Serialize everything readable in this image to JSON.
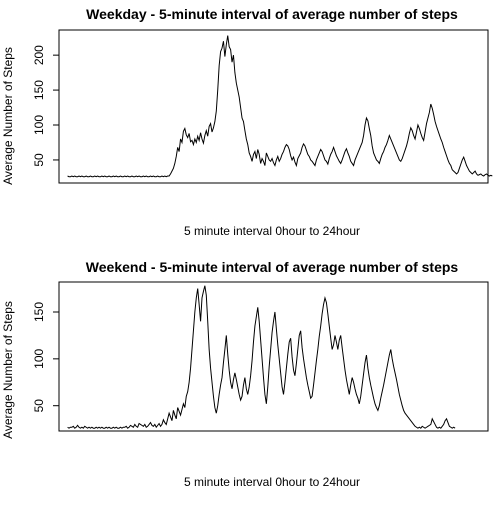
{
  "chart_data": [
    {
      "type": "line",
      "title": "Weekday - 5-minute interval of average number of steps",
      "xlabel": "5 minute interval 0hour to 24hour",
      "ylabel": "Average Number of Steps",
      "yticks": [
        50,
        100,
        150,
        200
      ],
      "ylim": [
        17,
        236
      ],
      "xlim": [
        -6,
        294
      ],
      "grid": false,
      "x_axis_ticks_shown": false,
      "series": [
        {
          "values": [
            27,
            26,
            26,
            27,
            26,
            27,
            26,
            26,
            27,
            26,
            27,
            26,
            26,
            27,
            26,
            26,
            27,
            26,
            26,
            27,
            26,
            27,
            26,
            26,
            27,
            26,
            27,
            26,
            26,
            27,
            26,
            26,
            27,
            26,
            27,
            26,
            26,
            27,
            26,
            26,
            27,
            26,
            27,
            26,
            26,
            27,
            26,
            26,
            27,
            26,
            27,
            26,
            26,
            27,
            26,
            27,
            26,
            26,
            27,
            26,
            27,
            26,
            26,
            27,
            26,
            26,
            27,
            26,
            27,
            26,
            27,
            27,
            30,
            34,
            38,
            45,
            55,
            68,
            62,
            80,
            75,
            91,
            95,
            86,
            82,
            88,
            76,
            78,
            72,
            80,
            75,
            84,
            78,
            89,
            80,
            74,
            85,
            92,
            84,
            98,
            102,
            90,
            96,
            105,
            120,
            150,
            185,
            205,
            210,
            220,
            198,
            215,
            228,
            212,
            208,
            190,
            200,
            175,
            160,
            150,
            140,
            125,
            110,
            105,
            92,
            80,
            72,
            60,
            55,
            48,
            58,
            62,
            52,
            65,
            58,
            45,
            52,
            48,
            42,
            60,
            55,
            50,
            48,
            52,
            46,
            42,
            50,
            55,
            48,
            52,
            58,
            62,
            68,
            72,
            70,
            65,
            56,
            50,
            54,
            47,
            42,
            52,
            56,
            60,
            68,
            73,
            70,
            64,
            58,
            55,
            50,
            48,
            45,
            42,
            50,
            55,
            60,
            65,
            62,
            56,
            50,
            48,
            44,
            52,
            58,
            62,
            68,
            62,
            56,
            52,
            48,
            45,
            50,
            56,
            62,
            66,
            60,
            55,
            48,
            45,
            42,
            50,
            55,
            60,
            65,
            70,
            75,
            85,
            100,
            110,
            106,
            95,
            85,
            70,
            60,
            55,
            50,
            48,
            45,
            52,
            58,
            62,
            68,
            72,
            78,
            85,
            80,
            75,
            70,
            65,
            60,
            55,
            50,
            48,
            52,
            58,
            64,
            70,
            78,
            88,
            96,
            92,
            85,
            80,
            90,
            100,
            95,
            88,
            82,
            78,
            90,
            102,
            110,
            118,
            130,
            124,
            115,
            105,
            98,
            92,
            86,
            80,
            75,
            68,
            62,
            56,
            50,
            45,
            42,
            36,
            34,
            32,
            30,
            32,
            38,
            44,
            50,
            54,
            48,
            42,
            38,
            34,
            32,
            30,
            32,
            34,
            30,
            28,
            29,
            30,
            28,
            27,
            29,
            30,
            28,
            27,
            28,
            27
          ]
        }
      ]
    },
    {
      "type": "line",
      "title": "Weekend - 5-minute interval of average number of steps",
      "xlabel": "5 minute interval 0hour to 24hour",
      "ylabel": "Average Number of Steps",
      "yticks": [
        50,
        100,
        150
      ],
      "ylim": [
        23,
        182
      ],
      "xlim": [
        -6,
        294
      ],
      "grid": false,
      "x_axis_ticks_shown": false,
      "series": [
        {
          "values": [
            27,
            26,
            27,
            27,
            28,
            26,
            27,
            29,
            27,
            26,
            27,
            26,
            28,
            27,
            26,
            27,
            26,
            27,
            26,
            26,
            27,
            26,
            27,
            26,
            27,
            26,
            26,
            27,
            26,
            27,
            26,
            26,
            27,
            26,
            27,
            26,
            26,
            27,
            26,
            27,
            27,
            28,
            26,
            27,
            29,
            28,
            27,
            30,
            28,
            27,
            31,
            30,
            29,
            28,
            30,
            27,
            28,
            30,
            32,
            29,
            28,
            30,
            27,
            29,
            31,
            28,
            30,
            35,
            32,
            30,
            36,
            42,
            38,
            34,
            45,
            40,
            36,
            48,
            44,
            40,
            46,
            52,
            48,
            60,
            65,
            75,
            90,
            110,
            130,
            150,
            165,
            175,
            158,
            140,
            165,
            172,
            178,
            168,
            140,
            110,
            90,
            75,
            60,
            48,
            42,
            50,
            62,
            72,
            80,
            96,
            110,
            125,
            105,
            88,
            75,
            68,
            78,
            85,
            78,
            70,
            62,
            56,
            60,
            72,
            80,
            68,
            62,
            70,
            82,
            98,
            118,
            135,
            145,
            155,
            140,
            120,
            100,
            80,
            62,
            52,
            70,
            92,
            110,
            128,
            140,
            150,
            132,
            115,
            100,
            85,
            70,
            62,
            75,
            90,
            105,
            118,
            122,
            102,
            88,
            82,
            95,
            110,
            125,
            130,
            112,
            100,
            90,
            80,
            72,
            65,
            58,
            60,
            72,
            85,
            98,
            110,
            124,
            135,
            148,
            158,
            165,
            160,
            148,
            135,
            122,
            110,
            115,
            125,
            118,
            110,
            120,
            125,
            112,
            100,
            88,
            78,
            70,
            62,
            72,
            80,
            75,
            68,
            62,
            58,
            52,
            60,
            72,
            84,
            96,
            104,
            90,
            80,
            72,
            65,
            58,
            52,
            48,
            45,
            50,
            58,
            65,
            72,
            80,
            88,
            96,
            104,
            110,
            100,
            92,
            85,
            78,
            70,
            62,
            56,
            50,
            45,
            42,
            40,
            38,
            36,
            34,
            32,
            30,
            28,
            27,
            26,
            27,
            26,
            28,
            27,
            26,
            27,
            28,
            29,
            30,
            36,
            33,
            30,
            27,
            26,
            27,
            26,
            28,
            30,
            34,
            36,
            32,
            28,
            27,
            26,
            27,
            26
          ]
        }
      ]
    }
  ]
}
